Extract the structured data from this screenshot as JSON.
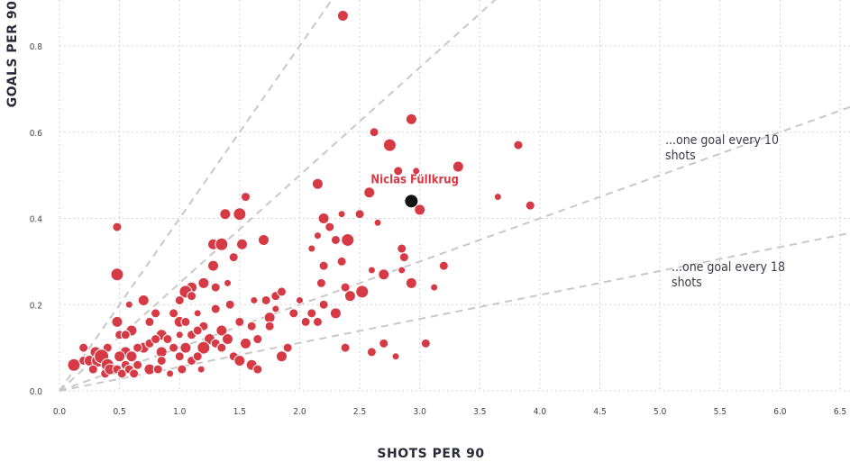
{
  "chart_data": {
    "type": "scatter",
    "title": "",
    "xlabel": "SHOTS PER 90",
    "ylabel": "GOALS PER 90",
    "xlim": [
      0,
      6.5
    ],
    "ylim": [
      0,
      0.9
    ],
    "x_ticks": [
      "0.0",
      "0.5",
      "1.0",
      "1.5",
      "2.0",
      "2.5",
      "3.0",
      "3.5",
      "4.0",
      "4.5",
      "5.0",
      "5.5",
      "6.0",
      "6.5"
    ],
    "y_ticks": [
      "0.0",
      "0.2",
      "0.4",
      "0.6",
      "0.8"
    ],
    "grid": true,
    "point_color": "#d63a45",
    "highlight_color": "#111111",
    "reference_line_color": "#c8c8c8",
    "reference_lines": [
      {
        "goals_per_shot": 0.4,
        "label": ""
      },
      {
        "goals_per_shot": 0.25,
        "label": ""
      },
      {
        "goals_per_shot": 0.1,
        "label": "...one goal every 10\nshots"
      },
      {
        "goals_per_shot": 0.0556,
        "label": "...one goal every 18\nshots"
      }
    ],
    "highlight": {
      "name": "Niclas Füllkrug",
      "x": 2.93,
      "y": 0.44
    },
    "points": [
      [
        2.36,
        0.87,
        6
      ],
      [
        2.93,
        0.63,
        6
      ],
      [
        2.62,
        0.6,
        5
      ],
      [
        2.75,
        0.57,
        7
      ],
      [
        3.82,
        0.57,
        5
      ],
      [
        3.32,
        0.52,
        6
      ],
      [
        2.82,
        0.51,
        5
      ],
      [
        2.97,
        0.51,
        4
      ],
      [
        2.15,
        0.48,
        6
      ],
      [
        2.58,
        0.46,
        6
      ],
      [
        3.65,
        0.45,
        4
      ],
      [
        3.0,
        0.42,
        6
      ],
      [
        3.92,
        0.43,
        5
      ],
      [
        1.55,
        0.45,
        5
      ],
      [
        1.38,
        0.41,
        6
      ],
      [
        1.5,
        0.41,
        7
      ],
      [
        2.2,
        0.4,
        6
      ],
      [
        2.5,
        0.41,
        5
      ],
      [
        2.35,
        0.41,
        4
      ],
      [
        2.65,
        0.39,
        4
      ],
      [
        1.28,
        0.34,
        6
      ],
      [
        1.35,
        0.34,
        7
      ],
      [
        1.52,
        0.34,
        6
      ],
      [
        1.7,
        0.35,
        6
      ],
      [
        2.25,
        0.38,
        5
      ],
      [
        2.4,
        0.35,
        7
      ],
      [
        2.3,
        0.35,
        5
      ],
      [
        2.15,
        0.36,
        4
      ],
      [
        0.48,
        0.38,
        5
      ],
      [
        1.45,
        0.31,
        5
      ],
      [
        1.28,
        0.29,
        6
      ],
      [
        2.2,
        0.29,
        5
      ],
      [
        2.35,
        0.3,
        5
      ],
      [
        2.1,
        0.33,
        4
      ],
      [
        2.85,
        0.33,
        5
      ],
      [
        2.87,
        0.31,
        5
      ],
      [
        2.6,
        0.28,
        4
      ],
      [
        2.85,
        0.28,
        4
      ],
      [
        3.2,
        0.29,
        5
      ],
      [
        2.7,
        0.27,
        6
      ],
      [
        0.48,
        0.27,
        7
      ],
      [
        1.1,
        0.24,
        6
      ],
      [
        1.2,
        0.25,
        6
      ],
      [
        1.3,
        0.24,
        5
      ],
      [
        1.4,
        0.25,
        4
      ],
      [
        1.05,
        0.23,
        7
      ],
      [
        2.18,
        0.25,
        5
      ],
      [
        2.38,
        0.24,
        5
      ],
      [
        2.42,
        0.22,
        6
      ],
      [
        2.52,
        0.23,
        7
      ],
      [
        2.93,
        0.25,
        6
      ],
      [
        3.12,
        0.24,
        4
      ],
      [
        0.7,
        0.21,
        6
      ],
      [
        1.0,
        0.21,
        5
      ],
      [
        1.1,
        0.22,
        5
      ],
      [
        1.62,
        0.21,
        4
      ],
      [
        1.72,
        0.21,
        5
      ],
      [
        1.8,
        0.22,
        5
      ],
      [
        1.85,
        0.23,
        5
      ],
      [
        2.0,
        0.21,
        4
      ],
      [
        0.58,
        0.2,
        4
      ],
      [
        0.8,
        0.18,
        5
      ],
      [
        0.95,
        0.18,
        5
      ],
      [
        1.15,
        0.18,
        4
      ],
      [
        1.3,
        0.19,
        5
      ],
      [
        1.42,
        0.2,
        5
      ],
      [
        1.75,
        0.17,
        6
      ],
      [
        1.8,
        0.19,
        4
      ],
      [
        1.95,
        0.18,
        5
      ],
      [
        2.1,
        0.18,
        5
      ],
      [
        2.2,
        0.2,
        5
      ],
      [
        2.3,
        0.18,
        6
      ],
      [
        0.48,
        0.16,
        6
      ],
      [
        0.6,
        0.14,
        6
      ],
      [
        0.75,
        0.16,
        5
      ],
      [
        0.85,
        0.13,
        6
      ],
      [
        1.0,
        0.16,
        6
      ],
      [
        1.05,
        0.16,
        5
      ],
      [
        1.2,
        0.15,
        5
      ],
      [
        1.35,
        0.14,
        6
      ],
      [
        1.5,
        0.16,
        5
      ],
      [
        1.6,
        0.15,
        5
      ],
      [
        1.75,
        0.15,
        5
      ],
      [
        2.05,
        0.16,
        5
      ],
      [
        2.15,
        0.16,
        5
      ],
      [
        0.5,
        0.13,
        5
      ],
      [
        0.55,
        0.13,
        5
      ],
      [
        0.7,
        0.1,
        6
      ],
      [
        0.75,
        0.11,
        5
      ],
      [
        0.8,
        0.12,
        5
      ],
      [
        0.9,
        0.12,
        5
      ],
      [
        1.1,
        0.13,
        5
      ],
      [
        1.15,
        0.14,
        5
      ],
      [
        1.25,
        0.12,
        6
      ],
      [
        1.4,
        0.12,
        6
      ],
      [
        1.55,
        0.11,
        6
      ],
      [
        1.65,
        0.12,
        5
      ],
      [
        0.2,
        0.1,
        5
      ],
      [
        0.3,
        0.09,
        6
      ],
      [
        0.4,
        0.1,
        5
      ],
      [
        0.55,
        0.09,
        6
      ],
      [
        0.65,
        0.1,
        5
      ],
      [
        0.85,
        0.09,
        6
      ],
      [
        1.05,
        0.1,
        6
      ],
      [
        1.2,
        0.1,
        7
      ],
      [
        1.3,
        0.11,
        5
      ],
      [
        1.35,
        0.1,
        5
      ],
      [
        1.45,
        0.08,
        5
      ],
      [
        1.9,
        0.1,
        5
      ],
      [
        2.38,
        0.1,
        5
      ],
      [
        2.7,
        0.11,
        5
      ],
      [
        3.05,
        0.11,
        5
      ],
      [
        0.12,
        0.06,
        7
      ],
      [
        0.2,
        0.07,
        5
      ],
      [
        0.25,
        0.07,
        6
      ],
      [
        0.32,
        0.07,
        7
      ],
      [
        0.35,
        0.08,
        8
      ],
      [
        0.4,
        0.06,
        7
      ],
      [
        0.45,
        0.05,
        6
      ],
      [
        0.5,
        0.08,
        6
      ],
      [
        0.55,
        0.06,
        5
      ],
      [
        0.6,
        0.08,
        6
      ],
      [
        0.65,
        0.06,
        5
      ],
      [
        0.75,
        0.05,
        6
      ],
      [
        0.85,
        0.07,
        5
      ],
      [
        1.0,
        0.08,
        5
      ],
      [
        1.1,
        0.07,
        5
      ],
      [
        1.15,
        0.08,
        5
      ],
      [
        1.5,
        0.07,
        6
      ],
      [
        1.6,
        0.06,
        6
      ],
      [
        1.65,
        0.05,
        5
      ],
      [
        1.85,
        0.08,
        6
      ],
      [
        2.6,
        0.09,
        5
      ],
      [
        2.8,
        0.08,
        4
      ],
      [
        0.28,
        0.05,
        5
      ],
      [
        0.38,
        0.04,
        5
      ],
      [
        0.42,
        0.05,
        6
      ],
      [
        0.48,
        0.05,
        5
      ],
      [
        0.52,
        0.04,
        5
      ],
      [
        0.58,
        0.05,
        5
      ],
      [
        0.62,
        0.04,
        5
      ],
      [
        0.82,
        0.05,
        5
      ],
      [
        0.92,
        0.04,
        4
      ],
      [
        1.02,
        0.05,
        5
      ],
      [
        1.18,
        0.05,
        4
      ],
      [
        0.95,
        0.1,
        5
      ],
      [
        1.0,
        0.13,
        4
      ]
    ]
  }
}
